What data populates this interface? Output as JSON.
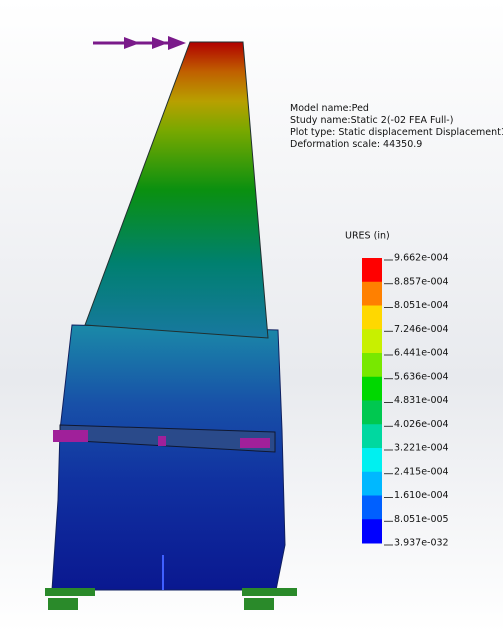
{
  "model_info": [
    "Model name:Ped",
    "Study name:Static 2(-02 FEA Full-)",
    "Plot type: Static displacement Displacement1",
    "Deformation scale: 44350.9"
  ],
  "legend": {
    "title": "URES (in)",
    "labels": [
      "9.662e-004",
      "8.857e-004",
      "8.051e-004",
      "7.246e-004",
      "6.441e-004",
      "5.636e-004",
      "4.831e-004",
      "4.026e-004",
      "3.221e-004",
      "2.415e-004",
      "1.610e-004",
      "8.051e-005",
      "3.937e-032"
    ],
    "colors": [
      "#ff0000",
      "#ff8000",
      "#ffd800",
      "#c8f000",
      "#78e800",
      "#00d800",
      "#00c850",
      "#00d8a0",
      "#00f0f0",
      "#00b8ff",
      "#0060ff",
      "#0000ff"
    ]
  }
}
